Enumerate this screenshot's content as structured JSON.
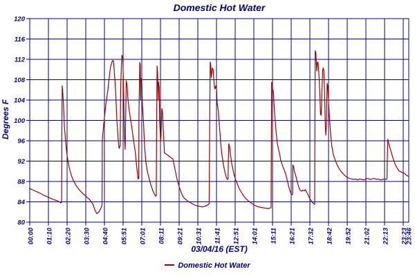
{
  "title": "Domestic Hot Water",
  "colors": {
    "axis": "#000080",
    "text": "#000080",
    "series": "#990000",
    "background": "#ffffff"
  },
  "y_axis": {
    "label": "Degrees F",
    "min": 80,
    "max": 120,
    "step": 4,
    "ticks": [
      120,
      116,
      112,
      108,
      104,
      100,
      96,
      92,
      88,
      84,
      80
    ]
  },
  "x_axis": {
    "label": "03/04/16 (EST)",
    "tick_labels": [
      "00:00",
      "01:10",
      "02:20",
      "03:30",
      "04:40",
      "05:51",
      "07:01",
      "08:11",
      "09:21",
      "10:31",
      "11:41",
      "12:51",
      "14:01",
      "15:11",
      "16:21",
      "17:32",
      "18:42",
      "19:52",
      "21:02",
      "22:13",
      "23:23"
    ],
    "end_label": "23:46",
    "minutes_start": 0,
    "minutes_end": 1426
  },
  "legend": {
    "marker_icon": "red-line-dash",
    "label": "Domestic Hot Water"
  },
  "chart_data": {
    "type": "line",
    "title": "Domestic Hot Water",
    "xlabel": "03/04/16 (EST)",
    "ylabel": "Degrees F",
    "x_unit": "minutes since 00:00",
    "xlim": [
      0,
      1426
    ],
    "ylim": [
      80,
      120
    ],
    "grid": true,
    "legend_position": "bottom",
    "series": [
      {
        "name": "Domestic Hot Water",
        "color": "#990000",
        "points": [
          [
            0,
            86.6
          ],
          [
            13,
            86.3
          ],
          [
            26,
            86.0
          ],
          [
            39,
            85.7
          ],
          [
            52,
            85.3
          ],
          [
            65,
            85.0
          ],
          [
            78,
            84.7
          ],
          [
            91,
            84.4
          ],
          [
            104,
            84.2
          ],
          [
            112,
            84.0
          ],
          [
            117,
            83.8
          ],
          [
            120,
            83.9
          ],
          [
            121,
            100.0
          ],
          [
            122,
            106.8
          ],
          [
            125,
            105.0
          ],
          [
            127,
            103.0
          ],
          [
            130,
            99.0
          ],
          [
            134,
            96.5
          ],
          [
            138,
            94.2
          ],
          [
            143,
            92.2
          ],
          [
            148,
            90.8
          ],
          [
            156,
            89.3
          ],
          [
            164,
            88.2
          ],
          [
            174,
            87.2
          ],
          [
            187,
            86.3
          ],
          [
            200,
            85.6
          ],
          [
            213,
            85.0
          ],
          [
            226,
            84.4
          ],
          [
            237,
            83.6
          ],
          [
            245,
            82.4
          ],
          [
            252,
            81.7
          ],
          [
            260,
            82.0
          ],
          [
            268,
            82.8
          ],
          [
            272,
            83.4
          ],
          [
            273,
            96.0
          ],
          [
            278,
            99.0
          ],
          [
            286,
            103.0
          ],
          [
            294,
            106.0
          ],
          [
            299,
            108.5
          ],
          [
            304,
            110.5
          ],
          [
            310,
            111.6
          ],
          [
            314,
            111.8
          ],
          [
            317,
            110.5
          ],
          [
            323,
            106.0
          ],
          [
            328,
            100.0
          ],
          [
            333,
            96.0
          ],
          [
            336,
            94.5
          ],
          [
            340,
            95.0
          ],
          [
            342,
            106.0
          ],
          [
            345,
            111.0
          ],
          [
            347,
            112.8
          ],
          [
            350,
            112.3
          ],
          [
            353,
            106.0
          ],
          [
            356,
            97.0
          ],
          [
            359,
            94.3
          ],
          [
            361,
            101.0
          ],
          [
            363,
            107.8
          ],
          [
            366,
            107.0
          ],
          [
            369,
            104.5
          ],
          [
            373,
            102.5
          ],
          [
            379,
            100.3
          ],
          [
            384,
            98.6
          ],
          [
            390,
            96.2
          ],
          [
            397,
            93.8
          ],
          [
            402,
            91.0
          ],
          [
            406,
            89.2
          ],
          [
            407,
            88.5
          ],
          [
            410,
            88.6
          ],
          [
            411,
            101.0
          ],
          [
            414,
            111.4
          ],
          [
            416,
            110.8
          ],
          [
            417,
            104.0
          ],
          [
            419,
            108.2
          ],
          [
            422,
            107.0
          ],
          [
            424,
            103.0
          ],
          [
            428,
            99.5
          ],
          [
            432,
            95.0
          ],
          [
            436,
            92.2
          ],
          [
            441,
            90.3
          ],
          [
            448,
            88.8
          ],
          [
            455,
            87.4
          ],
          [
            463,
            86.2
          ],
          [
            470,
            85.4
          ],
          [
            474,
            85.1
          ],
          [
            476,
            85.2
          ],
          [
            477,
            96.0
          ],
          [
            479,
            110.7
          ],
          [
            481,
            109.5
          ],
          [
            483,
            104.0
          ],
          [
            484,
            107.6
          ],
          [
            487,
            106.5
          ],
          [
            489,
            100.0
          ],
          [
            492,
            95.9
          ],
          [
            494,
            97.0
          ],
          [
            497,
            102.3
          ],
          [
            500,
            101.5
          ],
          [
            502,
            98.5
          ],
          [
            507,
            93.6
          ],
          [
            518,
            93.2
          ],
          [
            528,
            92.8
          ],
          [
            539,
            92.4
          ],
          [
            546,
            90.5
          ],
          [
            554,
            88.5
          ],
          [
            562,
            87.0
          ],
          [
            570,
            85.8
          ],
          [
            578,
            84.9
          ],
          [
            588,
            84.4
          ],
          [
            598,
            84.0
          ],
          [
            609,
            83.7
          ],
          [
            619,
            83.4
          ],
          [
            630,
            83.2
          ],
          [
            640,
            83.1
          ],
          [
            650,
            83.0
          ],
          [
            658,
            83.1
          ],
          [
            666,
            83.3
          ],
          [
            673,
            83.5
          ],
          [
            675,
            83.6
          ],
          [
            677,
            100.0
          ],
          [
            679,
            111.5
          ],
          [
            681,
            110.8
          ],
          [
            683,
            108.4
          ],
          [
            685,
            109.3
          ],
          [
            687,
            110.3
          ],
          [
            690,
            110.0
          ],
          [
            692,
            108.5
          ],
          [
            695,
            106.4
          ],
          [
            697,
            106.2
          ],
          [
            700,
            106.8
          ],
          [
            703,
            106.0
          ],
          [
            705,
            103.5
          ],
          [
            709,
            102.0
          ],
          [
            712,
            100.0
          ],
          [
            716,
            97.3
          ],
          [
            719,
            95.2
          ],
          [
            723,
            93.3
          ],
          [
            729,
            91.2
          ],
          [
            734,
            89.9
          ],
          [
            739,
            88.9
          ],
          [
            743,
            88.4
          ],
          [
            746,
            88.5
          ],
          [
            747,
            92.0
          ],
          [
            749,
            95.4
          ],
          [
            752,
            94.8
          ],
          [
            756,
            93.0
          ],
          [
            760,
            91.5
          ],
          [
            765,
            90.2
          ],
          [
            770,
            89.1
          ],
          [
            775,
            88.3
          ],
          [
            782,
            87.4
          ],
          [
            788,
            86.6
          ],
          [
            796,
            85.9
          ],
          [
            804,
            85.2
          ],
          [
            812,
            84.7
          ],
          [
            820,
            84.3
          ],
          [
            827,
            84.0
          ],
          [
            835,
            83.7
          ],
          [
            843,
            83.4
          ],
          [
            851,
            83.2
          ],
          [
            861,
            83.0
          ],
          [
            872,
            82.9
          ],
          [
            882,
            82.8
          ],
          [
            892,
            82.7
          ],
          [
            900,
            82.7
          ],
          [
            905,
            82.8
          ],
          [
            908,
            82.9
          ],
          [
            909,
            95.0
          ],
          [
            910,
            107.5
          ],
          [
            912,
            106.9
          ],
          [
            914,
            106.2
          ],
          [
            917,
            105.5
          ],
          [
            919,
            103.1
          ],
          [
            923,
            100.2
          ],
          [
            927,
            97.7
          ],
          [
            931,
            95.6
          ],
          [
            936,
            94.3
          ],
          [
            941,
            93.2
          ],
          [
            944,
            92.2
          ],
          [
            949,
            91.4
          ],
          [
            954,
            90.7
          ],
          [
            958,
            90.2
          ],
          [
            963,
            89.4
          ],
          [
            968,
            88.4
          ],
          [
            973,
            87.3
          ],
          [
            978,
            86.3
          ],
          [
            983,
            85.6
          ],
          [
            987,
            85.4
          ],
          [
            989,
            85.5
          ],
          [
            990,
            91.3
          ],
          [
            993,
            90.8
          ],
          [
            996,
            89.9
          ],
          [
            1002,
            88.9
          ],
          [
            1007,
            87.8
          ],
          [
            1012,
            86.9
          ],
          [
            1017,
            86.3
          ],
          [
            1023,
            86.1
          ],
          [
            1028,
            86.3
          ],
          [
            1033,
            86.2
          ],
          [
            1037,
            86.4
          ],
          [
            1041,
            86.0
          ],
          [
            1046,
            85.5
          ],
          [
            1051,
            84.9
          ],
          [
            1056,
            84.4
          ],
          [
            1062,
            84.0
          ],
          [
            1067,
            83.7
          ],
          [
            1071,
            83.5
          ],
          [
            1072,
            83.6
          ],
          [
            1073,
            98.0
          ],
          [
            1074,
            113.7
          ],
          [
            1076,
            113.3
          ],
          [
            1078,
            111.5
          ],
          [
            1080,
            109.7
          ],
          [
            1082,
            111.3
          ],
          [
            1084,
            111.5
          ],
          [
            1086,
            110.8
          ],
          [
            1089,
            108.0
          ],
          [
            1092,
            104.5
          ],
          [
            1094,
            101.2
          ],
          [
            1096,
            101.0
          ],
          [
            1098,
            103.0
          ],
          [
            1100,
            107.0
          ],
          [
            1102,
            109.8
          ],
          [
            1104,
            110.3
          ],
          [
            1106,
            110.0
          ],
          [
            1108,
            107.5
          ],
          [
            1110,
            103.5
          ],
          [
            1112,
            99.0
          ],
          [
            1114,
            97.1
          ],
          [
            1116,
            99.0
          ],
          [
            1117,
            103.5
          ],
          [
            1119,
            107.3
          ],
          [
            1121,
            106.8
          ],
          [
            1123,
            104.8
          ],
          [
            1127,
            101.0
          ],
          [
            1130,
            98.9
          ],
          [
            1133,
            96.7
          ],
          [
            1137,
            94.8
          ],
          [
            1142,
            93.3
          ],
          [
            1149,
            92.2
          ],
          [
            1155,
            91.4
          ],
          [
            1163,
            90.6
          ],
          [
            1171,
            90.0
          ],
          [
            1179,
            89.5
          ],
          [
            1187,
            89.1
          ],
          [
            1194,
            88.8
          ],
          [
            1202,
            88.6
          ],
          [
            1210,
            88.5
          ],
          [
            1218,
            88.4
          ],
          [
            1226,
            88.5
          ],
          [
            1233,
            88.3
          ],
          [
            1241,
            88.5
          ],
          [
            1249,
            88.4
          ],
          [
            1257,
            88.3
          ],
          [
            1265,
            88.5
          ],
          [
            1272,
            88.6
          ],
          [
            1280,
            88.4
          ],
          [
            1288,
            88.5
          ],
          [
            1296,
            88.6
          ],
          [
            1304,
            88.4
          ],
          [
            1311,
            88.5
          ],
          [
            1319,
            88.3
          ],
          [
            1327,
            88.4
          ],
          [
            1335,
            88.5
          ],
          [
            1341,
            88.4
          ],
          [
            1344,
            88.5
          ],
          [
            1345,
            92.0
          ],
          [
            1347,
            96.3
          ],
          [
            1349,
            95.8
          ],
          [
            1352,
            95.2
          ],
          [
            1356,
            94.5
          ],
          [
            1360,
            93.8
          ],
          [
            1364,
            93.0
          ],
          [
            1369,
            92.2
          ],
          [
            1374,
            91.5
          ],
          [
            1379,
            90.9
          ],
          [
            1384,
            90.5
          ],
          [
            1389,
            90.1
          ],
          [
            1395,
            89.9
          ],
          [
            1400,
            89.8
          ],
          [
            1405,
            89.7
          ],
          [
            1410,
            89.6
          ],
          [
            1415,
            89.3
          ],
          [
            1421,
            89.1
          ],
          [
            1426,
            89.0
          ]
        ]
      }
    ]
  }
}
